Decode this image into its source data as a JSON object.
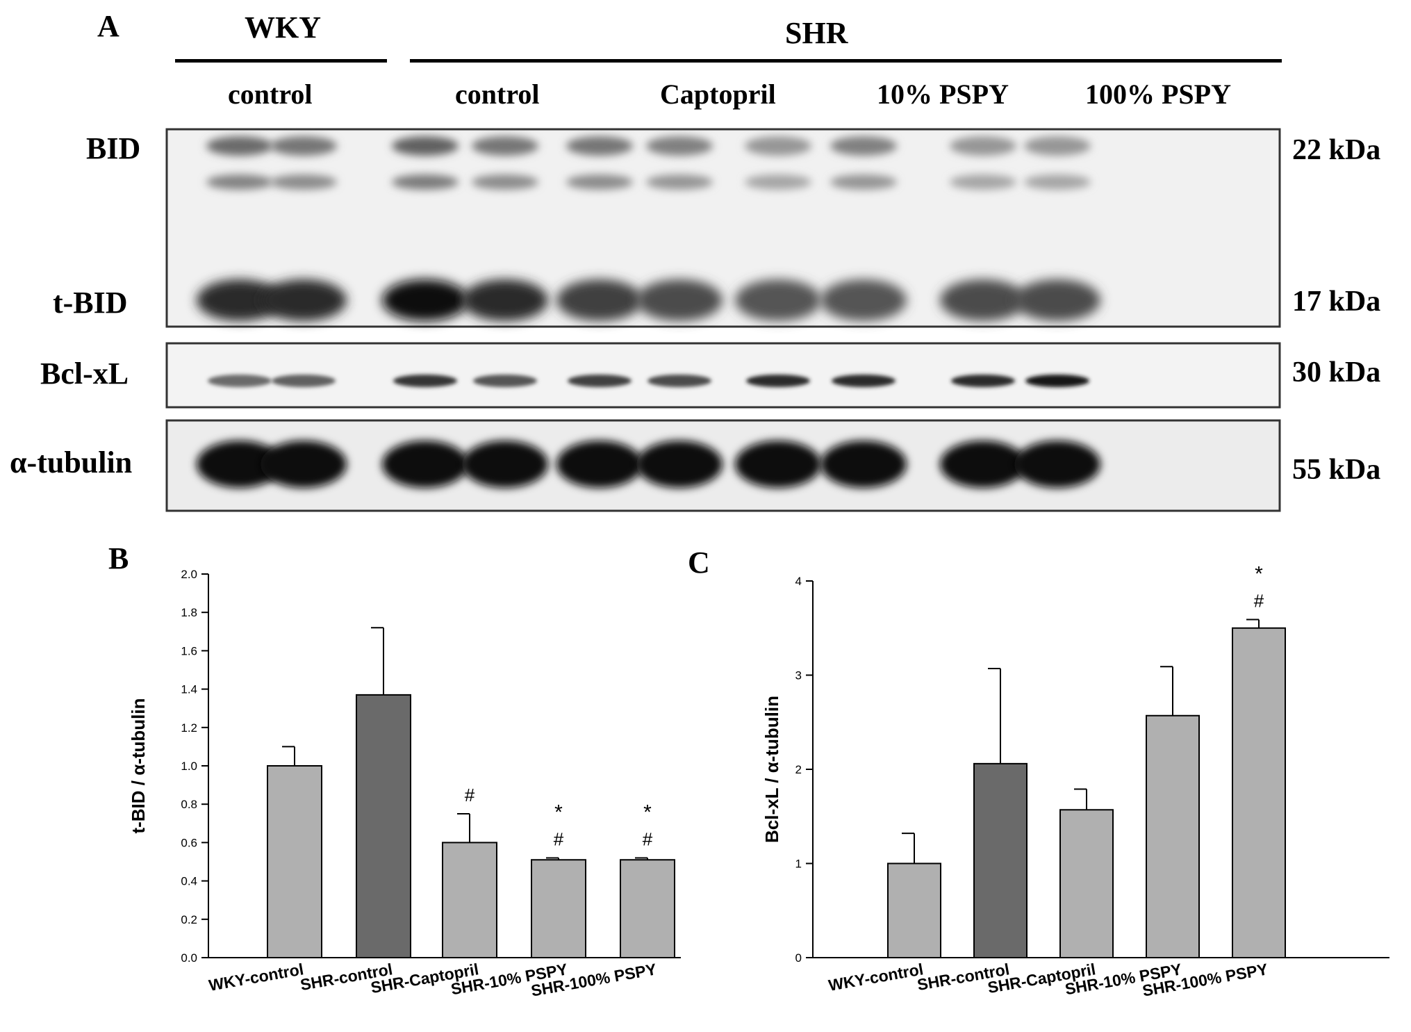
{
  "panel_a": {
    "letter": "A",
    "group_wky": "WKY",
    "group_shr": "SHR",
    "lanes": [
      "control",
      "control",
      "Captopril",
      "10% PSPY",
      "100% PSPY"
    ],
    "proteins": [
      "BID",
      "t-BID",
      "Bcl-xL",
      "α-tubulin"
    ],
    "sizes": [
      "22 kDa",
      "17 kDa",
      "30 kDa",
      "55 kDa"
    ],
    "band_intensity": {
      "bid": [
        0.55,
        0.5,
        0.6,
        0.5,
        0.5,
        0.45,
        0.35,
        0.45,
        0.35,
        0.35
      ],
      "tbid": [
        0.85,
        0.85,
        1.0,
        0.85,
        0.75,
        0.7,
        0.65,
        0.65,
        0.7,
        0.7
      ],
      "bclxl": [
        0.55,
        0.6,
        0.8,
        0.65,
        0.75,
        0.7,
        0.85,
        0.85,
        0.85,
        0.95
      ],
      "tubulin": [
        1,
        1,
        1,
        1,
        1,
        1,
        1,
        1,
        1,
        1
      ]
    }
  },
  "chart_data": [
    {
      "panel": "B",
      "type": "bar",
      "ylabel": "t-BID / α-tubulin",
      "ylim": [
        0,
        2.0
      ],
      "yticks": [
        "0.0",
        "0.2",
        "0.4",
        "0.6",
        "0.8",
        "1.0",
        "1.2",
        "1.4",
        "1.6",
        "1.8",
        "2.0"
      ],
      "categories": [
        "WKY-control",
        "SHR-control",
        "SHR-Captopril",
        "SHR-10% PSPY",
        "SHR-100% PSPY"
      ],
      "values": [
        1.0,
        1.37,
        0.6,
        0.51,
        0.51
      ],
      "errors": [
        0.1,
        0.35,
        0.15,
        0.01,
        0.01
      ],
      "annotations": [
        [],
        [],
        [
          "#"
        ],
        [
          "*",
          "#"
        ],
        [
          "*",
          "#"
        ]
      ],
      "colors": [
        "#b0b0b0",
        "#6a6a6a",
        "#b0b0b0",
        "#b0b0b0",
        "#b0b0b0"
      ]
    },
    {
      "panel": "C",
      "type": "bar",
      "ylabel": "Bcl-xL / α-tubulin",
      "ylim": [
        0,
        4
      ],
      "yticks": [
        "0",
        "1",
        "2",
        "3",
        "4"
      ],
      "categories": [
        "WKY-control",
        "SHR-control",
        "SHR-Captopril",
        "SHR-10% PSPY",
        "SHR-100% PSPY"
      ],
      "values": [
        1.0,
        2.06,
        1.57,
        2.57,
        3.5
      ],
      "errors": [
        0.32,
        1.01,
        0.22,
        0.52,
        0.09
      ],
      "annotations": [
        [],
        [],
        [],
        [],
        [
          "*",
          "#"
        ]
      ],
      "colors": [
        "#b0b0b0",
        "#6a6a6a",
        "#b0b0b0",
        "#b0b0b0",
        "#b0b0b0"
      ]
    }
  ]
}
